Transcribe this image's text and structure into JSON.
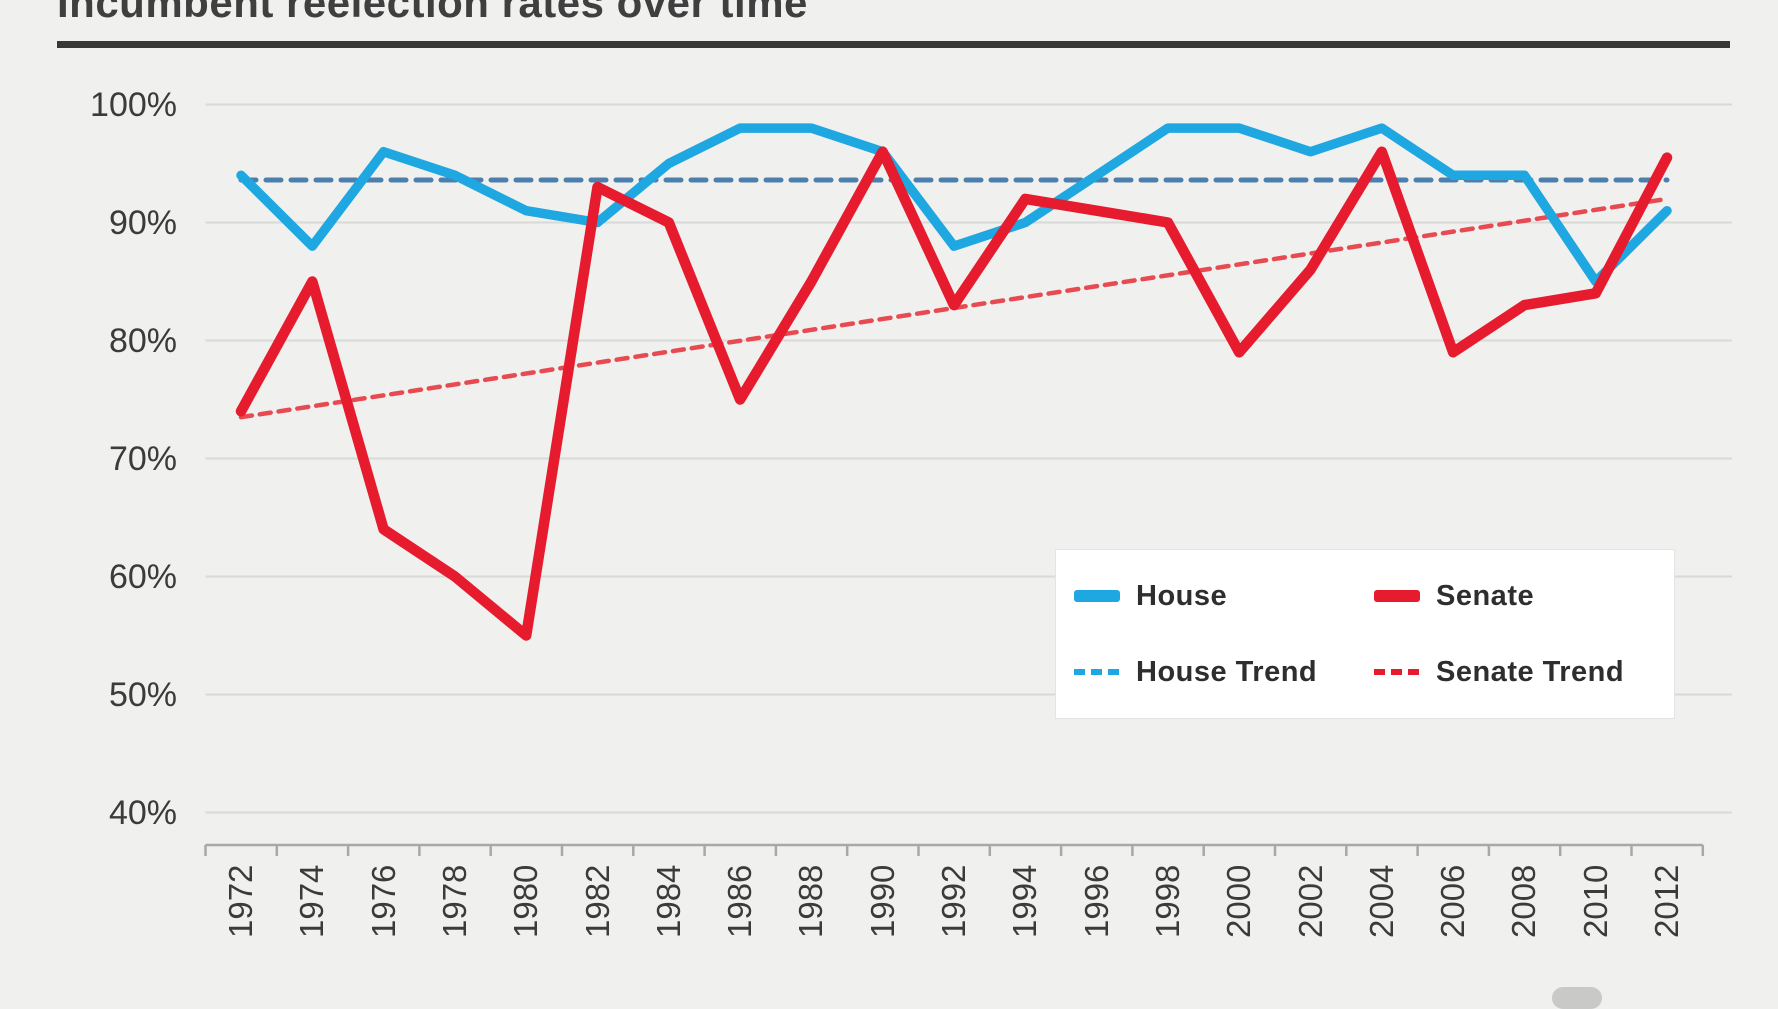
{
  "title": "Incumbent reelection rates over time",
  "colors": {
    "house": "#1ea7e1",
    "senate": "#e61b2e",
    "house_trend": "#4d7fae",
    "senate_trend": "#e84a52",
    "grid": "#d9d9d8",
    "axis": "#a8a8a8",
    "text": "#3b3b3b",
    "background": "#f0f0ee"
  },
  "y_axis": {
    "labels": [
      "100%",
      "90%",
      "80%",
      "70%",
      "60%",
      "50%",
      "40%"
    ]
  },
  "x_axis": {
    "labels": [
      "1972",
      "1974",
      "1976",
      "1978",
      "1980",
      "1982",
      "1984",
      "1986",
      "1988",
      "1990",
      "1992",
      "1994",
      "1996",
      "1998",
      "2000",
      "2002",
      "2004",
      "2006",
      "2008",
      "2010",
      "2012"
    ]
  },
  "legend": {
    "items": [
      {
        "id": "house",
        "label": "House",
        "style": "solid",
        "color": "#1ea7e1"
      },
      {
        "id": "senate",
        "label": "Senate",
        "style": "solid",
        "color": "#e61b2e"
      },
      {
        "id": "house-trend",
        "label": "House Trend",
        "style": "dashed",
        "color": "#1ea7e1"
      },
      {
        "id": "senate-trend",
        "label": "Senate Trend",
        "style": "dashed",
        "color": "#e61b2e"
      }
    ]
  },
  "chart_data": {
    "type": "line",
    "title": "Incumbent reelection rates over time",
    "x": [
      1972,
      1974,
      1976,
      1978,
      1980,
      1982,
      1984,
      1986,
      1988,
      1990,
      1992,
      1994,
      1996,
      1998,
      2000,
      2002,
      2004,
      2006,
      2008,
      2010,
      2012
    ],
    "series": [
      {
        "name": "House",
        "style": "solid",
        "color": "#1ea7e1",
        "values": [
          94,
          88,
          96,
          94,
          91,
          90,
          95,
          98,
          98,
          96,
          88,
          90,
          94,
          98,
          98,
          96,
          98,
          94,
          94,
          85,
          91
        ]
      },
      {
        "name": "Senate",
        "style": "solid",
        "color": "#e61b2e",
        "values": [
          74,
          85,
          64,
          60,
          55,
          93,
          90,
          75,
          85,
          96,
          83,
          92,
          91,
          90,
          79,
          86,
          96,
          79,
          83,
          84,
          95.5
        ]
      },
      {
        "name": "House Trend",
        "style": "dashed",
        "color": "#4d7fae",
        "trend": true,
        "start": 93.6,
        "end": 93.6
      },
      {
        "name": "Senate Trend",
        "style": "dashed",
        "color": "#e84a52",
        "trend": true,
        "start": 73.5,
        "end": 92
      }
    ],
    "xlabel": "",
    "ylabel": "",
    "ylim": [
      40,
      100
    ],
    "ytick_step": 10,
    "grid": true,
    "legend_position": "bottom-right"
  }
}
